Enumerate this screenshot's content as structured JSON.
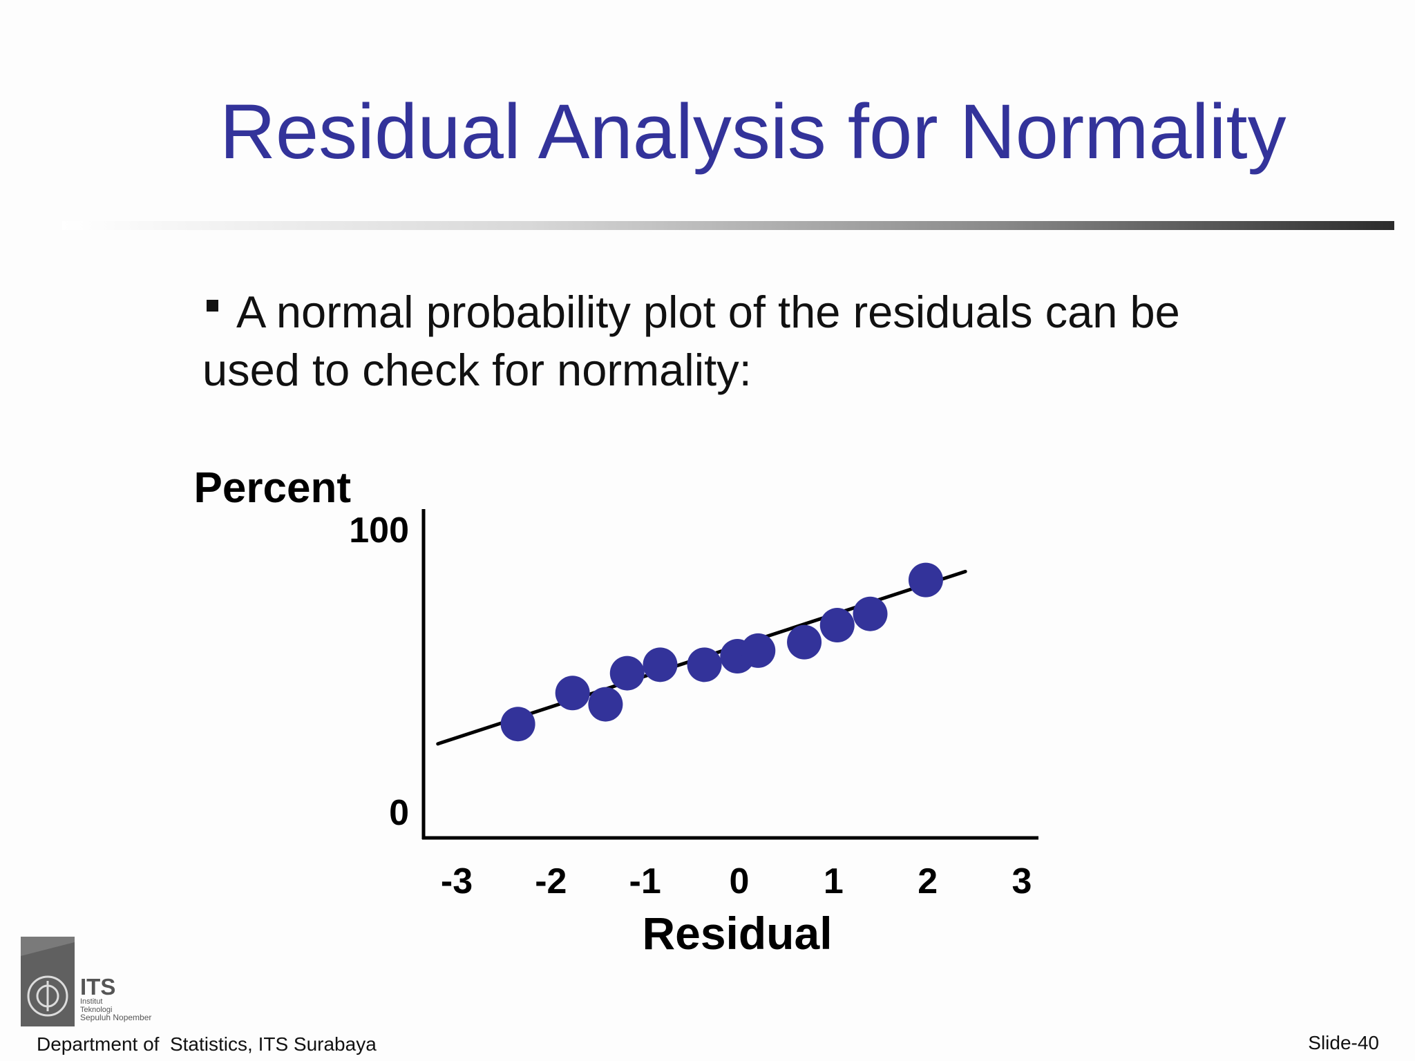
{
  "slide": {
    "title": "Residual Analysis for Normality",
    "bullet": "A normal probability plot of the residuals can be used to check for normality:"
  },
  "chart_data": {
    "type": "scatter",
    "ylabel": "Percent",
    "xlabel": "Residual",
    "xlim": [
      -3,
      3
    ],
    "ylim": [
      0,
      100
    ],
    "x_ticks": [
      "-3",
      "-2",
      "-1",
      "0",
      "1",
      "2",
      "3"
    ],
    "y_ticks": [
      "0",
      "100"
    ],
    "grid": false,
    "points": [
      {
        "x": -2.35,
        "y": 31
      },
      {
        "x": -1.77,
        "y": 42
      },
      {
        "x": -1.42,
        "y": 38
      },
      {
        "x": -1.19,
        "y": 49
      },
      {
        "x": -0.84,
        "y": 52
      },
      {
        "x": -0.37,
        "y": 52
      },
      {
        "x": -0.02,
        "y": 55
      },
      {
        "x": 0.2,
        "y": 57
      },
      {
        "x": 0.69,
        "y": 60
      },
      {
        "x": 1.04,
        "y": 66
      },
      {
        "x": 1.39,
        "y": 70
      },
      {
        "x": 1.98,
        "y": 82
      }
    ],
    "fit_line": {
      "x": [
        -3.2,
        2.4
      ],
      "y": [
        24,
        85
      ]
    },
    "point_color": "#33339a",
    "line_color": "#000000"
  },
  "footer": {
    "left": "Department of  Statistics, ITS Surabaya",
    "right": "Slide-40"
  },
  "logo": {
    "name": "ITS",
    "line1": "Institut",
    "line2": "Teknologi",
    "line3": "Sepuluh Nopember"
  }
}
